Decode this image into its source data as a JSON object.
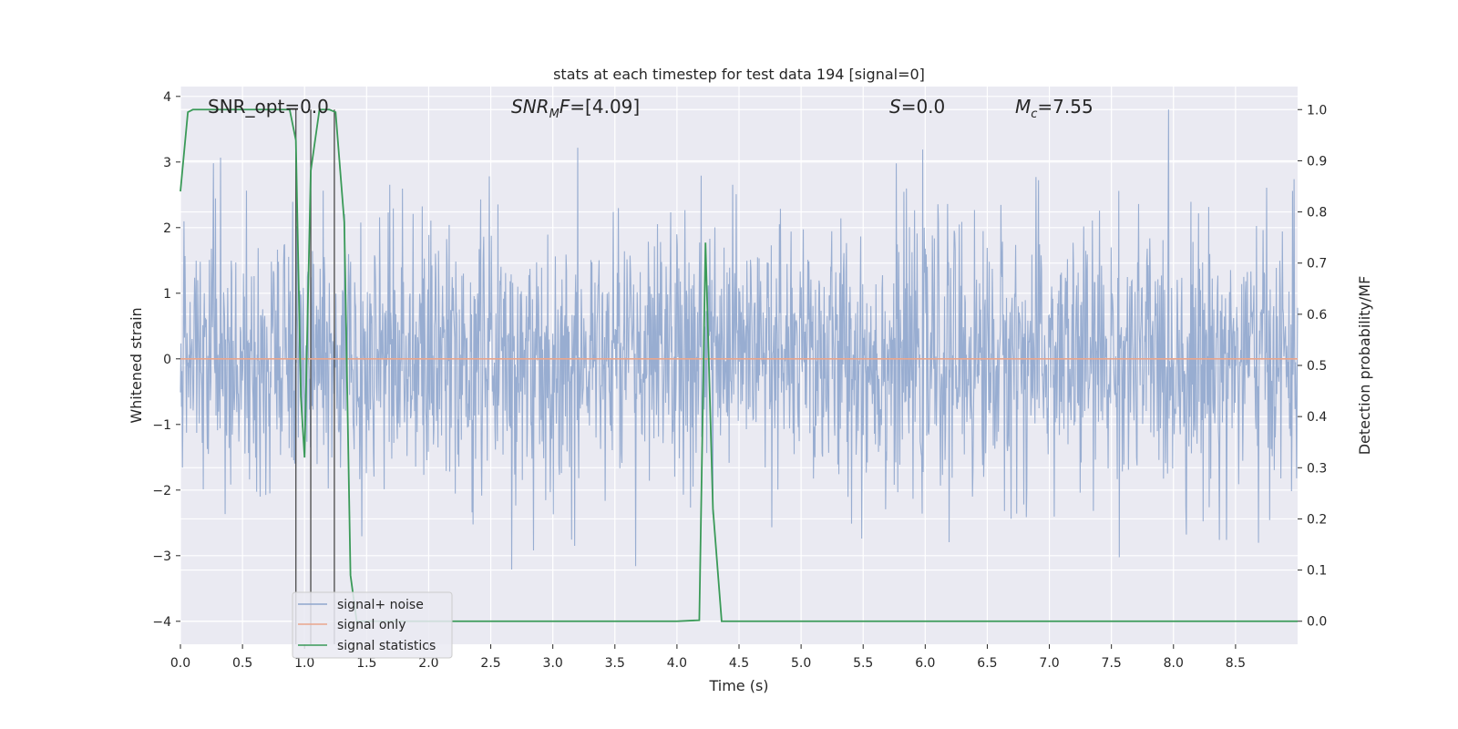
{
  "chart_data": {
    "type": "line",
    "title": "stats at each timestep for test data 194 [signal=0]",
    "xlabel": "Time (s)",
    "ylabel": "Whitened strain",
    "ylabel_right": "Detection probability/MF",
    "xlim": [
      0.0,
      9.0
    ],
    "ylim": [
      -4.35,
      4.15
    ],
    "ylim_right": [
      -0.045,
      1.045
    ],
    "xticks": [
      "0.0",
      "0.5",
      "1.0",
      "1.5",
      "2.0",
      "2.5",
      "3.0",
      "3.5",
      "4.0",
      "4.5",
      "5.0",
      "5.5",
      "6.0",
      "6.5",
      "7.0",
      "7.5",
      "8.0",
      "8.5"
    ],
    "yticks": [
      "−4",
      "−3",
      "−2",
      "−1",
      "0",
      "1",
      "2",
      "3",
      "4"
    ],
    "yticks_right": [
      "0.0",
      "0.1",
      "0.2",
      "0.3",
      "0.4",
      "0.5",
      "0.6",
      "0.7",
      "0.8",
      "0.9",
      "1.0"
    ],
    "grid": true,
    "legend_position": "lower-left",
    "annotations": {
      "snr_opt": "SNR_opt=0.0",
      "snr_mf": "=[4.09]",
      "s": "=0.0",
      "mc": "=7.55"
    },
    "series": [
      {
        "name": "signal+ noise",
        "color": "#8fa6cd",
        "description_values": "whitened noise, approx. N(0,1), range about -3.7 to 3.8",
        "min": -3.7,
        "max": 3.8
      },
      {
        "name": "signal only",
        "color": "#e9a68d",
        "x": [
          0.0,
          9.0
        ],
        "y": [
          0.0,
          0.0
        ]
      },
      {
        "name": "signal statistics",
        "color": "#3a9a58",
        "axis": "right",
        "x": [
          0.0,
          0.06,
          0.1,
          0.15,
          0.2,
          0.3,
          0.5,
          0.7,
          0.88,
          0.93,
          0.97,
          1.0,
          1.05,
          1.12,
          1.2,
          1.25,
          1.32,
          1.37,
          1.42,
          2.0,
          3.0,
          4.0,
          4.18,
          4.23,
          4.29,
          4.36,
          4.4,
          5.0,
          6.0,
          7.0,
          8.0,
          9.0
        ],
        "y": [
          0.84,
          0.995,
          1.0,
          1.0,
          1.0,
          1.0,
          1.0,
          1.0,
          1.0,
          0.94,
          0.44,
          0.32,
          0.88,
          1.0,
          1.0,
          0.995,
          0.78,
          0.09,
          0.0,
          0.0,
          0.0,
          0.0,
          0.002,
          0.74,
          0.22,
          0.0,
          0.0,
          0.0,
          0.0,
          0.0,
          0.0,
          0.0
        ]
      }
    ],
    "vertical_lines_x": [
      0.93,
      1.05,
      1.24
    ]
  }
}
